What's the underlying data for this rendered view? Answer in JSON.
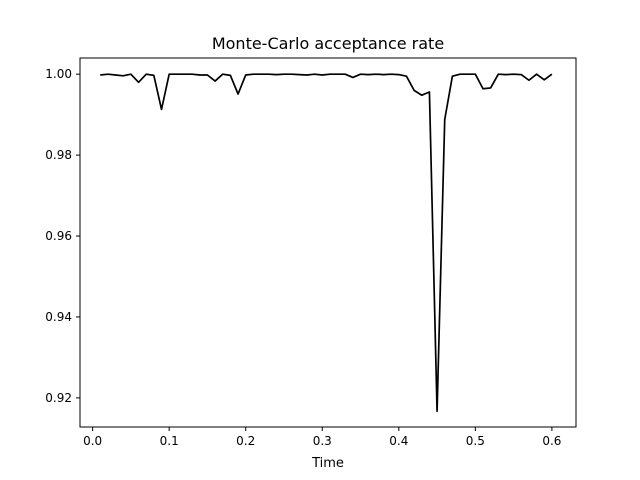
{
  "chart_data": {
    "type": "line",
    "title": "Monte-Carlo acceptance rate",
    "xlabel": "Time",
    "ylabel": "",
    "xlim": [
      -0.0165,
      0.6315
    ],
    "ylim": [
      0.9128,
      1.004
    ],
    "xticks": [
      0.0,
      0.1,
      0.2,
      0.3,
      0.4,
      0.5,
      0.6
    ],
    "xtick_labels": [
      "0.0",
      "0.1",
      "0.2",
      "0.3",
      "0.4",
      "0.5",
      "0.6"
    ],
    "yticks": [
      0.92,
      0.94,
      0.96,
      0.98,
      1.0
    ],
    "ytick_labels": [
      "0.92",
      "0.94",
      "0.96",
      "0.98",
      "1.00"
    ],
    "grid": false,
    "legend": "none",
    "series": [
      {
        "color": "#000000",
        "x": [
          0.01,
          0.02,
          0.03,
          0.04,
          0.05,
          0.06,
          0.07,
          0.08,
          0.09,
          0.1,
          0.11,
          0.12,
          0.13,
          0.14,
          0.15,
          0.16,
          0.17,
          0.18,
          0.19,
          0.2,
          0.21,
          0.22,
          0.23,
          0.24,
          0.25,
          0.26,
          0.27,
          0.28,
          0.29,
          0.3,
          0.31,
          0.32,
          0.33,
          0.34,
          0.35,
          0.36,
          0.37,
          0.38,
          0.39,
          0.4,
          0.41,
          0.42,
          0.43,
          0.44,
          0.45,
          0.46,
          0.47,
          0.48,
          0.49,
          0.5,
          0.51,
          0.52,
          0.53,
          0.54,
          0.55,
          0.56,
          0.57,
          0.58,
          0.59,
          0.6
        ],
        "y": [
          0.9998,
          1.0,
          0.9998,
          0.9996,
          1.0,
          0.998,
          1.0,
          0.9997,
          0.9913,
          1.0,
          1.0,
          1.0,
          1.0,
          0.9998,
          0.9998,
          0.9983,
          1.0,
          0.9997,
          0.9951,
          0.9998,
          1.0,
          1.0,
          1.0,
          0.9999,
          1.0,
          1.0,
          0.9999,
          0.9998,
          1.0,
          0.9998,
          1.0,
          1.0,
          1.0,
          0.9992,
          1.0,
          0.9999,
          1.0,
          0.9999,
          1.0,
          0.9999,
          0.9995,
          0.996,
          0.9948,
          0.9956,
          0.9167,
          0.9888,
          0.9995,
          1.0,
          1.0,
          1.0,
          0.9964,
          0.9966,
          1.0,
          0.9999,
          1.0,
          0.9999,
          0.9985,
          1.0,
          0.9986,
          1.0
        ]
      }
    ]
  }
}
